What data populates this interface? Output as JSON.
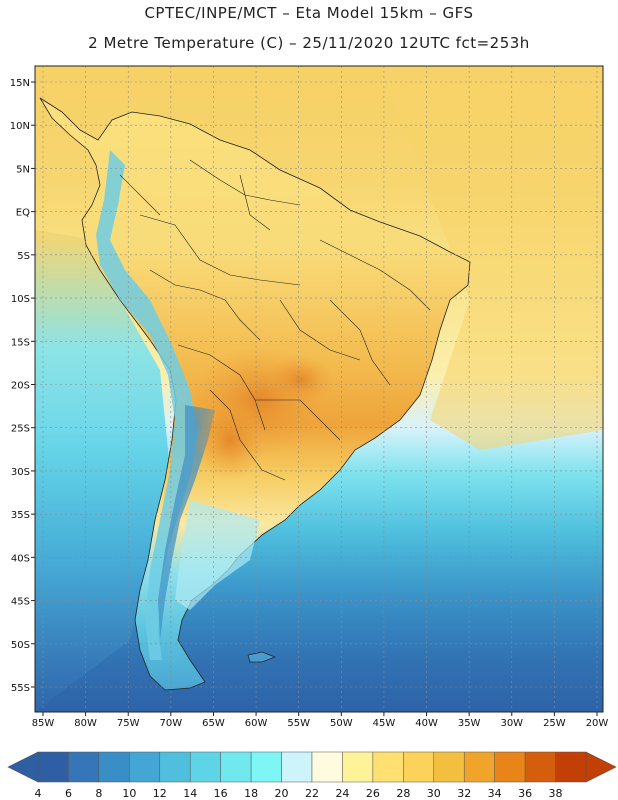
{
  "header": {
    "line1": "CPTEC/INPE/MCT –  Eta Model 15km – GFS",
    "line2": "2 Metre Temperature (C) – 25/11/2020 12UTC fct=253h"
  },
  "map": {
    "lat_labels": [
      "15N",
      "10N",
      "5N",
      "EQ",
      "5S",
      "10S",
      "15S",
      "20S",
      "25S",
      "30S",
      "35S",
      "40S",
      "45S",
      "50S",
      "55S"
    ],
    "lon_labels": [
      "85W",
      "80W",
      "75W",
      "70W",
      "65W",
      "60W",
      "55W",
      "50W",
      "45W",
      "40W",
      "35W",
      "30W",
      "25W",
      "20W"
    ]
  },
  "colorbar": {
    "labels": [
      "4",
      "6",
      "8",
      "10",
      "12",
      "14",
      "16",
      "18",
      "20",
      "22",
      "24",
      "26",
      "28",
      "30",
      "32",
      "34",
      "36",
      "38"
    ],
    "colors": [
      "#2e5ea3",
      "#3476b7",
      "#3a8ec6",
      "#43a6d4",
      "#4fbfdd",
      "#5ed5e6",
      "#6fe8ee",
      "#7ff6f6",
      "#cdf3fb",
      "#fffbe0",
      "#fff39a",
      "#ffe070",
      "#fbd25a",
      "#f2c03e",
      "#f0a52a",
      "#e88418",
      "#d45e0c",
      "#c23f06"
    ]
  },
  "colors": {
    "ocean_warm": "#f6d26a",
    "ocean_mid": "#f9e58c",
    "ocean_cool": "#dff4fa",
    "ocean_cold": "#52c3e0",
    "ocean_coldest": "#2f69ad",
    "land_warm": "#f3b64a",
    "land_hot": "#e89430"
  }
}
